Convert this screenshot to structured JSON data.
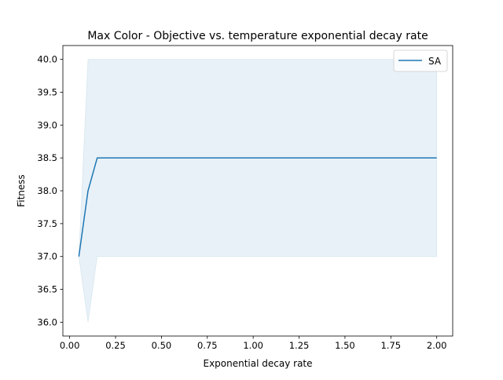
{
  "chart_data": {
    "type": "line",
    "title": "Max Color - Objective vs. temperature exponential decay rate",
    "xlabel": "Exponential decay rate",
    "ylabel": "Fitness",
    "xlim": [
      -0.037,
      2.087
    ],
    "ylim": [
      35.79,
      40.21
    ],
    "xticks": [
      0.0,
      0.25,
      0.5,
      0.75,
      1.0,
      1.25,
      1.5,
      1.75,
      2.0
    ],
    "xtick_labels": [
      "0.00",
      "0.25",
      "0.50",
      "0.75",
      "1.00",
      "1.25",
      "1.50",
      "1.75",
      "2.00"
    ],
    "yticks": [
      36.0,
      36.5,
      37.0,
      37.5,
      38.0,
      38.5,
      39.0,
      39.5,
      40.0
    ],
    "ytick_labels": [
      "36.0",
      "36.5",
      "37.0",
      "37.5",
      "38.0",
      "38.5",
      "39.0",
      "39.5",
      "40.0"
    ],
    "grid": false,
    "legend_position": "upper right",
    "series": [
      {
        "name": "SA",
        "color": "#1f77b4",
        "x": [
          0.05,
          0.1,
          0.15,
          2.0
        ],
        "y": [
          37.0,
          38.0,
          38.5,
          38.5
        ],
        "band_lower": [
          37.0,
          36.0,
          37.0,
          37.0
        ],
        "band_upper": [
          37.0,
          40.0,
          40.0,
          40.0
        ],
        "band_color": "#1f77b4",
        "band_opacity": 0.1
      }
    ]
  }
}
